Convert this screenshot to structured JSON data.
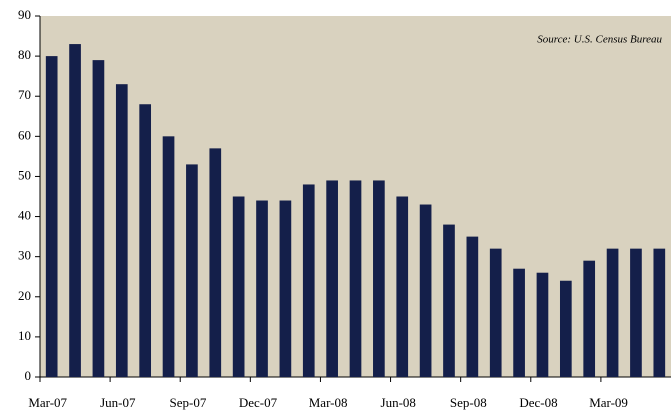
{
  "chart_data": {
    "type": "bar",
    "annotation": "Source: U.S. Census Bureau",
    "categories": [
      "Mar-07",
      null,
      null,
      "Jun-07",
      null,
      null,
      "Sep-07",
      null,
      null,
      "Dec-07",
      null,
      null,
      "Mar-08",
      null,
      null,
      "Jun-08",
      null,
      null,
      "Sep-08",
      null,
      null,
      "Dec-08",
      null,
      null,
      "Mar-09",
      null,
      null
    ],
    "values": [
      80,
      83,
      79,
      73,
      68,
      60,
      53,
      57,
      45,
      44,
      44,
      48,
      49,
      49,
      49,
      45,
      43,
      38,
      35,
      32,
      27,
      26,
      24,
      29,
      32,
      32,
      32
    ],
    "color": "#141f4a",
    "background": "#d9d2bf",
    "ylim": [
      0,
      90
    ],
    "yticks": [
      0,
      10,
      20,
      30,
      40,
      50,
      60,
      70,
      80,
      90
    ],
    "grid": false
  }
}
